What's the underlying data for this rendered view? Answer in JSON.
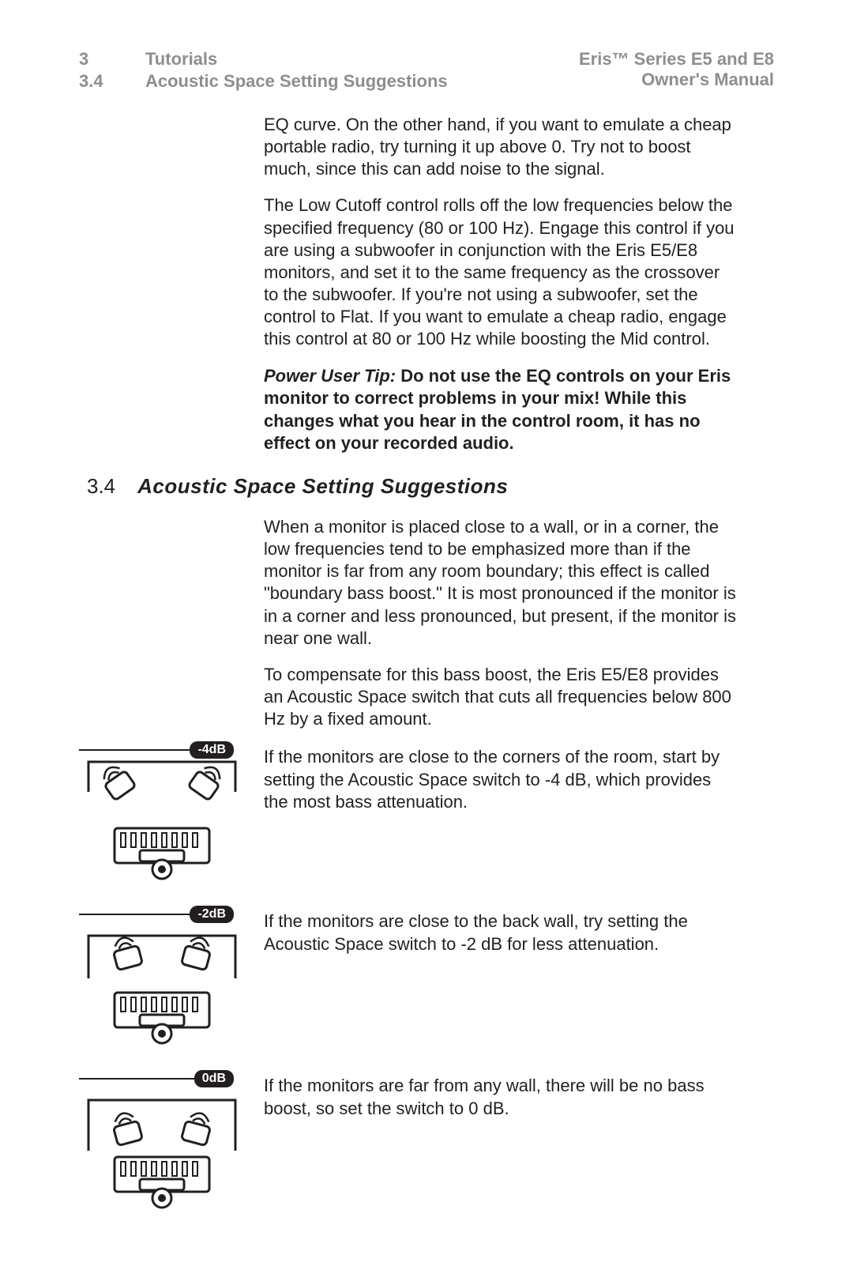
{
  "header": {
    "chapter_num": "3",
    "chapter_title": "Tutorials",
    "section_num": "3.4",
    "section_title": "Acoustic Space Setting Suggestions",
    "product": "Eris™ Series E5 and E8",
    "doc": "Owner's Manual"
  },
  "paras": {
    "p1": "EQ curve. On the other hand, if you want to emulate a cheap portable radio, try turning it up above 0. Try not to boost much, since this can add noise to the signal.",
    "p2": "The Low Cutoff control rolls off the low frequencies below the specified frequency (80 or 100 Hz). Engage this control if you are using a subwoofer in conjunction with the Eris E5/E8 monitors, and set it to the same frequency as the crossover to the subwoofer. If you're not using a subwoofer, set the control to Flat. If you want to emulate a cheap radio, engage this control at 80 or 100 Hz while boosting the Mid control.",
    "tip_lead": "Power User Tip: ",
    "tip_body": "Do not use the EQ controls on your Eris monitor to correct problems in your mix! While this changes what you hear in the control room, it has no effect on your recorded audio."
  },
  "section": {
    "num": "3.4",
    "title": "Acoustic Space Setting Suggestions"
  },
  "sec_paras": {
    "s1": "When a monitor is placed close to a wall, or in a corner, the low frequencies tend to be emphasized more than if the monitor is far from any room boundary; this effect is called \"boundary bass boost.\" It is most pronounced if the monitor is in a corner and less pronounced, but present, if the monitor is near one wall.",
    "s2": "To compensate for this bass boost, the Eris E5/E8 provides an Acoustic Space switch that cuts all frequencies below 800 Hz by a fixed amount."
  },
  "settings": [
    {
      "badge": "-4dB",
      "text": "If the monitors are close to the corners of the room, start by setting the Acoustic Space switch to -4 dB, which provides the most bass attenuation.",
      "corner": true,
      "back_wall": false
    },
    {
      "badge": "-2dB",
      "text": "If the monitors are close to the back wall, try setting the Acoustic Space switch to -2 dB for less attenuation.",
      "corner": false,
      "back_wall": true
    },
    {
      "badge": "0dB",
      "text": "If the monitors are far from any wall, there will be no bass boost, so set the switch to 0 dB.",
      "corner": false,
      "back_wall": false
    }
  ],
  "style": {
    "text_color": "#231f20",
    "muted_color": "#8e8e8e",
    "body_fontsize": 22,
    "header_fontsize": 22,
    "section_fontsize": 26,
    "badge_bg": "#231f20",
    "badge_fg": "#ffffff",
    "page_bg": "#ffffff",
    "stroke": "#231f20",
    "stroke_width": 3
  }
}
